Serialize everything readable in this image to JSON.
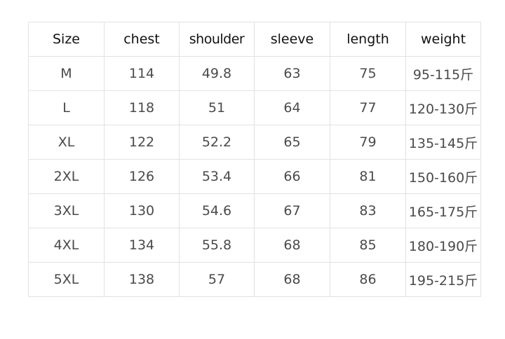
{
  "table": {
    "headers": [
      "Size",
      "chest",
      "shoulder",
      "sleeve",
      "length",
      "weight"
    ],
    "rows": [
      [
        "M",
        "114",
        "49.8",
        "63",
        "75",
        "95-115斤"
      ],
      [
        "L",
        "118",
        "51",
        "64",
        "77",
        "120-130斤"
      ],
      [
        "XL",
        "122",
        "52.2",
        "65",
        "79",
        "135-145斤"
      ],
      [
        "2XL",
        "126",
        "53.4",
        "66",
        "81",
        "150-160斤"
      ],
      [
        "3XL",
        "130",
        "54.6",
        "67",
        "83",
        "165-175斤"
      ],
      [
        "4XL",
        "134",
        "55.8",
        "68",
        "85",
        "180-190斤"
      ],
      [
        "5XL",
        "138",
        "57",
        "68",
        "86",
        "195-215斤"
      ]
    ]
  }
}
